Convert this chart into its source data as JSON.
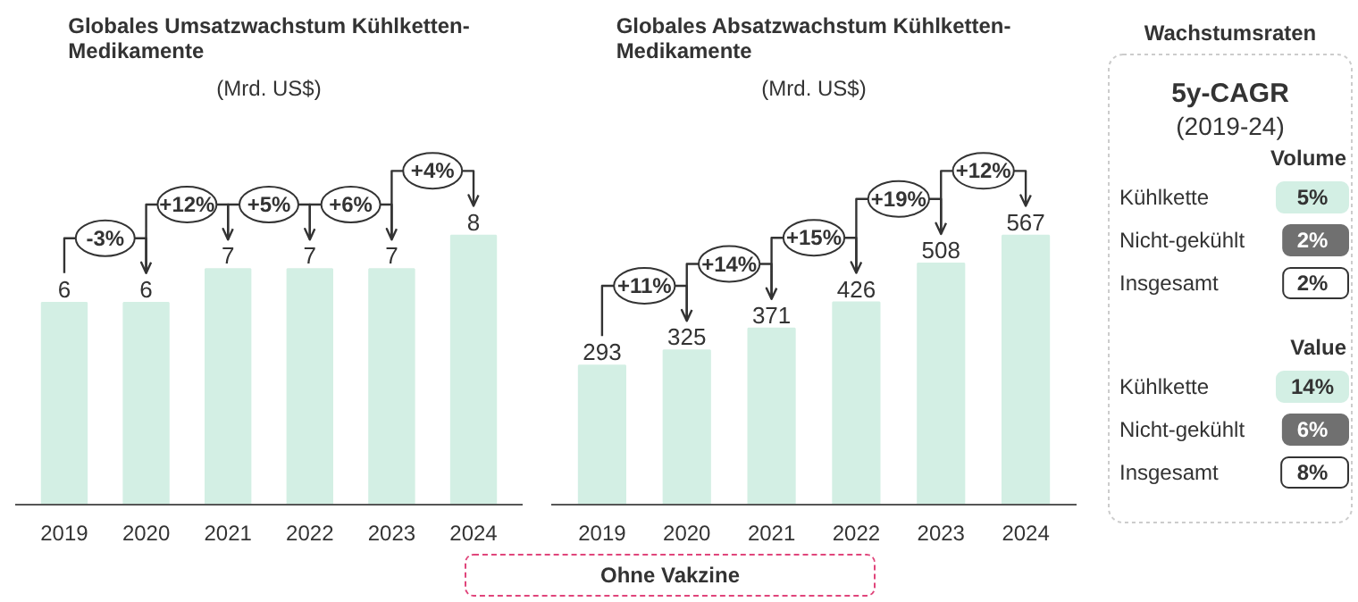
{
  "chart_data": [
    {
      "type": "bar",
      "title": "Globales Umsatzwachstum Kühlketten-Medikamente",
      "subtitle": "(Mrd. US$)",
      "categories": [
        "2019",
        "2020",
        "2021",
        "2022",
        "2023",
        "2024"
      ],
      "values": [
        6,
        6,
        7,
        7,
        7,
        8
      ],
      "color": "#d3efe4",
      "data_labels": true,
      "annotations": [
        "-3%",
        "+12%",
        "+5%",
        "+6%",
        "+4%"
      ]
    },
    {
      "type": "bar",
      "title": "Globales Absatzwachstum Kühlketten-Medikamente",
      "subtitle": "(Mrd. US$)",
      "categories": [
        "2019",
        "2020",
        "2021",
        "2022",
        "2023",
        "2024"
      ],
      "values": [
        293,
        325,
        371,
        426,
        508,
        567
      ],
      "color": "#d3efe4",
      "data_labels": true,
      "annotations": [
        "+11%",
        "+14%",
        "+15%",
        "+19%",
        "+12%"
      ]
    },
    {
      "type": "other",
      "title": "Wachstumsraten",
      "subtitle": "5y-CAGR",
      "annotations": [
        "(2019-24)"
      ],
      "categories": [
        "Kühlkette",
        "Nicht-gekühlt",
        "Insgesamt"
      ],
      "series": [
        {
          "name": "Volume",
          "colors": [
            "#d3efe4",
            "#707070",
            "#ffffff"
          ],
          "values": [
            5,
            2,
            2
          ],
          "value_labels": [
            "5%",
            "2%",
            "2%"
          ]
        },
        {
          "name": "Value",
          "colors": [
            "#d3efe4",
            "#707070",
            "#ffffff"
          ],
          "values": [
            14,
            6,
            8
          ],
          "value_labels": [
            "14%",
            "6%",
            "8%"
          ]
        }
      ]
    },
    {
      "type": "other",
      "annotations": [
        "Ohne Vakzine"
      ]
    }
  ]
}
